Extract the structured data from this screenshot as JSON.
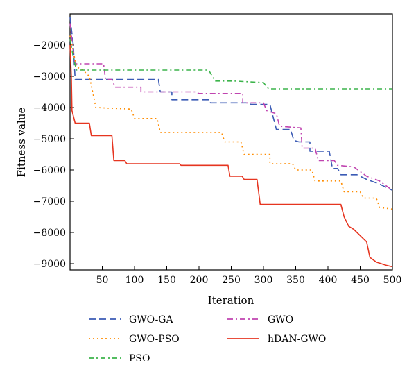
{
  "chart_data": {
    "type": "line",
    "xlabel": "Iteration",
    "ylabel": "Fitness value",
    "xlim": [
      0,
      500
    ],
    "ylim": [
      -9200,
      -1000
    ],
    "xticks": [
      50,
      100,
      150,
      200,
      250,
      300,
      350,
      400,
      450,
      500
    ],
    "yticks": [
      -2000,
      -3000,
      -4000,
      -5000,
      -6000,
      -7000,
      -8000,
      -9000
    ],
    "grid": false,
    "legend_position": "bottom",
    "series": [
      {
        "name": "GWO-GA",
        "color": "#3b5bb5",
        "dash": "dashed",
        "points": [
          [
            0,
            -1100
          ],
          [
            5,
            -2000
          ],
          [
            8,
            -3100
          ],
          [
            137,
            -3100
          ],
          [
            140,
            -3500
          ],
          [
            158,
            -3500
          ],
          [
            158,
            -3750
          ],
          [
            217,
            -3750
          ],
          [
            218,
            -3850
          ],
          [
            280,
            -3850
          ],
          [
            280,
            -3900
          ],
          [
            310,
            -3900
          ],
          [
            315,
            -4300
          ],
          [
            320,
            -4700
          ],
          [
            342,
            -4700
          ],
          [
            347,
            -5050
          ],
          [
            355,
            -5100
          ],
          [
            372,
            -5100
          ],
          [
            372,
            -5400
          ],
          [
            402,
            -5400
          ],
          [
            407,
            -5950
          ],
          [
            415,
            -5950
          ],
          [
            420,
            -6150
          ],
          [
            445,
            -6150
          ],
          [
            460,
            -6300
          ],
          [
            480,
            -6450
          ],
          [
            500,
            -6650
          ]
        ]
      },
      {
        "name": "GWO",
        "color": "#c044b0",
        "dash": "dashdot",
        "points": [
          [
            0,
            -1300
          ],
          [
            5,
            -2200
          ],
          [
            8,
            -2600
          ],
          [
            52,
            -2600
          ],
          [
            55,
            -3100
          ],
          [
            65,
            -3100
          ],
          [
            70,
            -3350
          ],
          [
            110,
            -3350
          ],
          [
            110,
            -3500
          ],
          [
            195,
            -3500
          ],
          [
            200,
            -3550
          ],
          [
            268,
            -3550
          ],
          [
            268,
            -3850
          ],
          [
            300,
            -3850
          ],
          [
            305,
            -4100
          ],
          [
            320,
            -4200
          ],
          [
            325,
            -4600
          ],
          [
            358,
            -4650
          ],
          [
            360,
            -5300
          ],
          [
            380,
            -5300
          ],
          [
            385,
            -5700
          ],
          [
            410,
            -5700
          ],
          [
            415,
            -5850
          ],
          [
            440,
            -5900
          ],
          [
            460,
            -6200
          ],
          [
            480,
            -6350
          ],
          [
            500,
            -6650
          ]
        ]
      },
      {
        "name": "GWO-PSO",
        "color": "#ff8c00",
        "dash": "dotted",
        "points": [
          [
            0,
            -1700
          ],
          [
            10,
            -2700
          ],
          [
            20,
            -2800
          ],
          [
            30,
            -3000
          ],
          [
            35,
            -3500
          ],
          [
            40,
            -4000
          ],
          [
            95,
            -4050
          ],
          [
            100,
            -4350
          ],
          [
            135,
            -4350
          ],
          [
            140,
            -4800
          ],
          [
            235,
            -4800
          ],
          [
            240,
            -5100
          ],
          [
            265,
            -5100
          ],
          [
            270,
            -5500
          ],
          [
            310,
            -5500
          ],
          [
            310,
            -5800
          ],
          [
            345,
            -5800
          ],
          [
            350,
            -6000
          ],
          [
            375,
            -6000
          ],
          [
            380,
            -6350
          ],
          [
            420,
            -6350
          ],
          [
            425,
            -6700
          ],
          [
            450,
            -6700
          ],
          [
            455,
            -6900
          ],
          [
            475,
            -6900
          ],
          [
            480,
            -7200
          ],
          [
            500,
            -7250
          ]
        ]
      },
      {
        "name": "hDAN-GWO",
        "color": "#e63520",
        "dash": "solid",
        "points": [
          [
            0,
            -2000
          ],
          [
            2,
            -3000
          ],
          [
            3,
            -4100
          ],
          [
            8,
            -4500
          ],
          [
            30,
            -4500
          ],
          [
            33,
            -4900
          ],
          [
            65,
            -4900
          ],
          [
            68,
            -5700
          ],
          [
            85,
            -5700
          ],
          [
            88,
            -5800
          ],
          [
            170,
            -5800
          ],
          [
            172,
            -5850
          ],
          [
            245,
            -5850
          ],
          [
            248,
            -6200
          ],
          [
            267,
            -6200
          ],
          [
            270,
            -6300
          ],
          [
            290,
            -6300
          ],
          [
            295,
            -7100
          ],
          [
            420,
            -7100
          ],
          [
            425,
            -7500
          ],
          [
            432,
            -7800
          ],
          [
            440,
            -7900
          ],
          [
            450,
            -8100
          ],
          [
            460,
            -8300
          ],
          [
            465,
            -8800
          ],
          [
            475,
            -8950
          ],
          [
            490,
            -9050
          ],
          [
            500,
            -9100
          ]
        ]
      },
      {
        "name": "PSO",
        "color": "#3cb44b",
        "dash": "dashdot2",
        "points": [
          [
            0,
            -1800
          ],
          [
            5,
            -2400
          ],
          [
            10,
            -2800
          ],
          [
            215,
            -2800
          ],
          [
            225,
            -3150
          ],
          [
            255,
            -3150
          ],
          [
            300,
            -3200
          ],
          [
            308,
            -3400
          ],
          [
            500,
            -3400
          ]
        ]
      }
    ]
  }
}
